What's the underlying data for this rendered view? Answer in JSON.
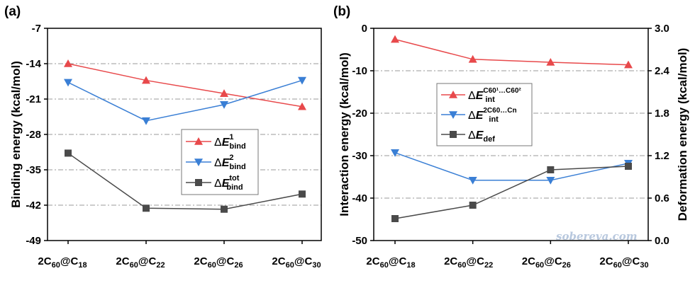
{
  "panels": {
    "a": {
      "tag": "(a)",
      "ylabel": "Binding energy (kcal/mol)",
      "yticks": [
        "-7",
        "-14",
        "-21",
        "-28",
        "-35",
        "-42",
        "-49"
      ],
      "legend": [
        {
          "sym": "Δ",
          "E": "E",
          "sup": "1",
          "sub": "bind"
        },
        {
          "sym": "Δ",
          "E": "E",
          "sup": "2",
          "sub": "bind"
        },
        {
          "sym": "Δ",
          "E": "E",
          "sup": "tot",
          "sub": "bind"
        }
      ]
    },
    "b": {
      "tag": "(b)",
      "ylabel_left": "Interaction energy (kcal/mol)",
      "ylabel_right": "Deformation energy (kcal/mol)",
      "yticks_left": [
        "0",
        "-10",
        "-20",
        "-30",
        "-40",
        "-50"
      ],
      "yticks_right": [
        "3.0",
        "2.4",
        "1.8",
        "1.2",
        "0.6",
        "0.0"
      ],
      "legend": [
        {
          "sym": "Δ",
          "E": "E",
          "sub": "int",
          "sup": "C60¹…C60²"
        },
        {
          "sym": "Δ",
          "E": "E",
          "sub": "int",
          "sup": "2C60…Cn"
        },
        {
          "sym": "Δ",
          "E": "E",
          "sub": "def"
        }
      ],
      "watermark": "sobereva.com"
    }
  },
  "categories": [
    {
      "pre": "2C",
      "s1": "60",
      "mid": "@C",
      "s2": "18"
    },
    {
      "pre": "2C",
      "s1": "60",
      "mid": "@C",
      "s2": "22"
    },
    {
      "pre": "2C",
      "s1": "60",
      "mid": "@C",
      "s2": "26"
    },
    {
      "pre": "2C",
      "s1": "60",
      "mid": "@C",
      "s2": "30"
    }
  ],
  "colors": {
    "red": "#e8494b",
    "blue": "#3a7fd5",
    "gray": "#4a4a4a"
  },
  "chart_data": [
    {
      "type": "line",
      "categories": [
        "2C60@C18",
        "2C60@C22",
        "2C60@C26",
        "2C60@C30"
      ],
      "ylabel": "Binding energy (kcal/mol)",
      "ylim": [
        -49,
        -7
      ],
      "series": [
        {
          "name": "ΔE1bind",
          "marker": "triangle-up",
          "color": "#e8494b",
          "values": [
            -14.0,
            -17.3,
            -19.9,
            -22.5
          ]
        },
        {
          "name": "ΔE2bind",
          "marker": "triangle-down",
          "color": "#3a7fd5",
          "values": [
            -17.7,
            -25.3,
            -22.1,
            -17.3
          ]
        },
        {
          "name": "ΔEtotbind",
          "marker": "square",
          "color": "#4a4a4a",
          "values": [
            -31.7,
            -42.6,
            -42.8,
            -39.8
          ]
        }
      ]
    },
    {
      "type": "line",
      "categories": [
        "2C60@C18",
        "2C60@C22",
        "2C60@C26",
        "2C60@C30"
      ],
      "ylabel": "Interaction energy (kcal/mol)",
      "ylim": [
        -50,
        0
      ],
      "y2label": "Deformation energy (kcal/mol)",
      "y2lim": [
        0.0,
        3.0
      ],
      "series": [
        {
          "name": "ΔEintC60¹…C60²",
          "axis": "left",
          "marker": "triangle-up",
          "color": "#e8494b",
          "values": [
            -2.6,
            -7.3,
            -8.0,
            -8.6
          ]
        },
        {
          "name": "ΔEint2C60…Cn",
          "axis": "left",
          "marker": "triangle-down",
          "color": "#3a7fd5",
          "values": [
            -29.3,
            -35.8,
            -35.8,
            -31.8
          ]
        },
        {
          "name": "ΔEdef",
          "axis": "right",
          "marker": "square",
          "color": "#4a4a4a",
          "values": [
            0.31,
            0.5,
            1.0,
            1.05
          ]
        }
      ]
    }
  ]
}
